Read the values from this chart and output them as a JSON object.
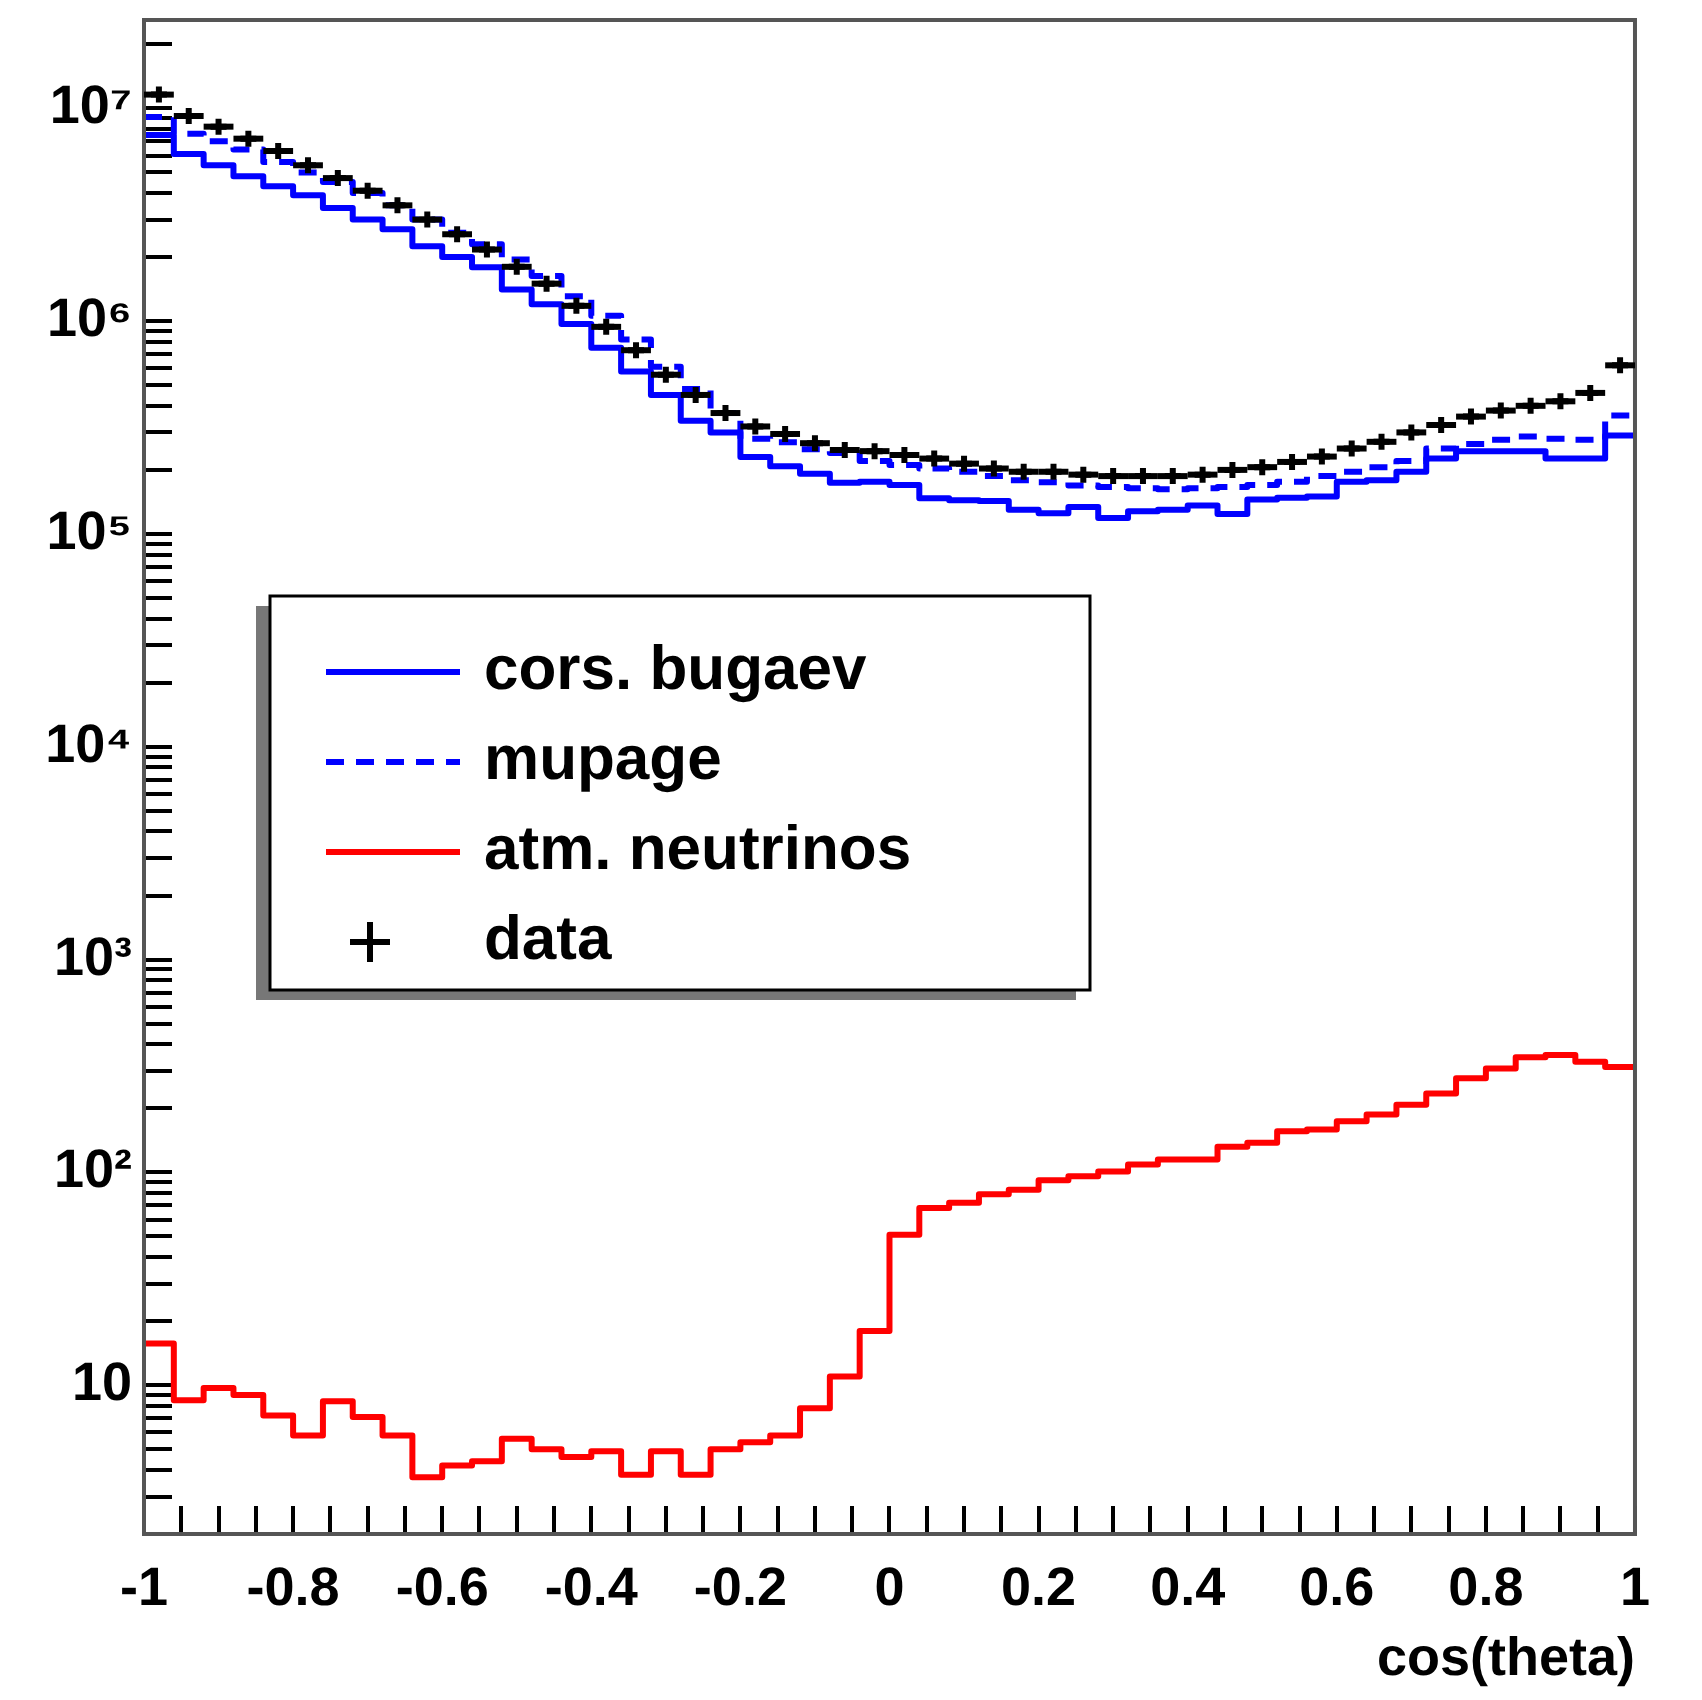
{
  "chart_data": {
    "type": "histogram",
    "xlabel": "cos(theta)",
    "legend": "left",
    "grid": false,
    "log": "y",
    "bins": [
      -1,
      -0.96,
      -0.92,
      -0.88,
      -0.84,
      -0.8,
      -0.76,
      -0.72,
      -0.68,
      -0.64,
      -0.6,
      -0.56,
      -0.52,
      -0.48,
      -0.44,
      -0.4,
      -0.36,
      -0.32,
      -0.28,
      -0.24,
      -0.2,
      -0.16,
      -0.12,
      -0.08,
      -0.04,
      0,
      0.04,
      0.08,
      0.12,
      0.16,
      0.2,
      0.24,
      0.28,
      0.32,
      0.36,
      0.4,
      0.44,
      0.48,
      0.52,
      0.56,
      0.6,
      0.64,
      0.68,
      0.72,
      0.76,
      0.8,
      0.84,
      0.88,
      0.92,
      0.96,
      1
    ],
    "xlim": [
      -1,
      1
    ],
    "xticks": [
      -1,
      {
        "value": -0.95,
        "label": null
      },
      {
        "value": -0.9,
        "label": null
      },
      {
        "value": -0.85,
        "label": null
      },
      -0.8,
      {
        "value": -0.75,
        "label": null
      },
      {
        "value": -0.7,
        "label": null
      },
      {
        "value": -0.65,
        "label": null
      },
      -0.6,
      {
        "value": -0.55,
        "label": null
      },
      {
        "value": -0.5,
        "label": null
      },
      {
        "value": -0.45,
        "label": null
      },
      -0.4,
      {
        "value": -0.35,
        "label": null
      },
      {
        "value": -0.3,
        "label": null
      },
      {
        "value": -0.25,
        "label": null
      },
      -0.2,
      {
        "value": -0.15,
        "label": null
      },
      {
        "value": -0.1,
        "label": null
      },
      {
        "value": -0.05,
        "label": null
      },
      0,
      {
        "value": 0.05,
        "label": null
      },
      {
        "value": 0.1,
        "label": null
      },
      {
        "value": 0.15,
        "label": null
      },
      0.2,
      {
        "value": 0.25,
        "label": null
      },
      {
        "value": 0.3,
        "label": null
      },
      {
        "value": 0.35,
        "label": null
      },
      0.4,
      {
        "value": 0.45,
        "label": null
      },
      {
        "value": 0.5,
        "label": null
      },
      {
        "value": 0.55,
        "label": null
      },
      0.6,
      {
        "value": 0.65,
        "label": null
      },
      {
        "value": 0.7,
        "label": null
      },
      {
        "value": 0.75,
        "label": null
      },
      0.8,
      {
        "value": 0.85,
        "label": null
      },
      {
        "value": 0.9,
        "label": null
      },
      {
        "value": 0.95,
        "label": null
      },
      1
    ],
    "ylim": [
      2,
      26000000
    ],
    "yticks": [
      {
        "value": 2,
        "label": null
      },
      {
        "value": 3,
        "label": null
      },
      {
        "value": 4,
        "label": null
      },
      {
        "value": 5,
        "label": null
      },
      {
        "value": 6,
        "label": null
      },
      {
        "value": 7,
        "label": null
      },
      {
        "value": 8,
        "label": null
      },
      {
        "value": 9,
        "label": null
      },
      10,
      {
        "value": 20,
        "label": null
      },
      {
        "value": 30,
        "label": null
      },
      {
        "value": 40,
        "label": null
      },
      {
        "value": 50,
        "label": null
      },
      {
        "value": 60,
        "label": null
      },
      {
        "value": 70,
        "label": null
      },
      {
        "value": 80,
        "label": null
      },
      {
        "value": 90,
        "label": null
      },
      {
        "value": 100,
        "label": "10²"
      },
      {
        "value": 200,
        "label": null
      },
      {
        "value": 300,
        "label": null
      },
      {
        "value": 400,
        "label": null
      },
      {
        "value": 500,
        "label": null
      },
      {
        "value": 600,
        "label": null
      },
      {
        "value": 700,
        "label": null
      },
      {
        "value": 800,
        "label": null
      },
      {
        "value": 900,
        "label": null
      },
      {
        "value": 1000,
        "label": "10³"
      },
      {
        "value": 2000,
        "label": null
      },
      {
        "value": 3000,
        "label": null
      },
      {
        "value": 4000,
        "label": null
      },
      {
        "value": 5000,
        "label": null
      },
      {
        "value": 6000,
        "label": null
      },
      {
        "value": 7000,
        "label": null
      },
      {
        "value": 8000,
        "label": null
      },
      {
        "value": 9000,
        "label": null
      },
      {
        "value": 10000,
        "label": "10⁴"
      },
      {
        "value": 20000,
        "label": null
      },
      {
        "value": 30000,
        "label": null
      },
      {
        "value": 40000,
        "label": null
      },
      {
        "value": 50000,
        "label": null
      },
      {
        "value": 60000,
        "label": null
      },
      {
        "value": 70000,
        "label": null
      },
      {
        "value": 80000,
        "label": null
      },
      {
        "value": 90000,
        "label": null
      },
      {
        "value": 100000,
        "label": "10⁵"
      },
      {
        "value": 200000,
        "label": null
      },
      {
        "value": 300000,
        "label": null
      },
      {
        "value": 400000,
        "label": null
      },
      {
        "value": 500000,
        "label": null
      },
      {
        "value": 600000,
        "label": null
      },
      {
        "value": 700000,
        "label": null
      },
      {
        "value": 800000,
        "label": null
      },
      {
        "value": 900000,
        "label": null
      },
      {
        "value": 1000000,
        "label": "10⁶"
      },
      {
        "value": 2000000,
        "label": null
      },
      {
        "value": 3000000,
        "label": null
      },
      {
        "value": 4000000,
        "label": null
      },
      {
        "value": 5000000,
        "label": null
      },
      {
        "value": 6000000,
        "label": null
      },
      {
        "value": 7000000,
        "label": null
      },
      {
        "value": 8000000,
        "label": null
      },
      {
        "value": 9000000,
        "label": null
      },
      {
        "value": 10000000,
        "label": "10⁷"
      },
      {
        "value": 20000000,
        "label": null
      }
    ],
    "series": [
      {
        "name": "cors. bugaev",
        "color": "#0000ff",
        "line_style": "solid",
        "values": [
          7500000,
          6100000,
          5400000,
          4800000,
          4300000,
          3900000,
          3400000,
          3000000,
          2700000,
          2250000,
          2000000,
          1790000,
          1410000,
          1200000,
          970000,
          750000,
          580000,
          450000,
          340000,
          300000,
          230000,
          208000,
          192000,
          174000,
          176000,
          170000,
          147000,
          144000,
          143000,
          130000,
          125000,
          134000,
          119000,
          128000,
          130000,
          136000,
          124000,
          145000,
          148000,
          150000,
          176000,
          179000,
          196000,
          226000,
          245000,
          245000,
          245000,
          226000,
          226000,
          290000
        ]
      },
      {
        "name": "mupage",
        "color": "#0000ff",
        "line_style": "dashed",
        "values": [
          9100000,
          7600000,
          7000000,
          6400000,
          5600000,
          5000000,
          4500000,
          4000000,
          3500000,
          3000000,
          2600000,
          2300000,
          1950000,
          1630000,
          1310000,
          1060000,
          820000,
          610000,
          480000,
          370000,
          280000,
          270000,
          250000,
          240000,
          220000,
          211000,
          203000,
          196000,
          187000,
          179000,
          175000,
          169000,
          166000,
          164000,
          162000,
          164000,
          166000,
          170000,
          176000,
          187000,
          196000,
          206000,
          220000,
          252000,
          265000,
          277000,
          287000,
          280000,
          277000,
          360000
        ]
      },
      {
        "name": "atm. neutrinos",
        "color": "#ff0000",
        "line_style": "solid",
        "values": [
          15.7,
          8.5,
          9.7,
          9.0,
          7.2,
          5.8,
          8.4,
          7.1,
          5.8,
          3.7,
          4.2,
          4.4,
          5.6,
          5.0,
          4.6,
          4.9,
          3.8,
          4.9,
          3.8,
          5.0,
          5.4,
          5.8,
          7.8,
          11,
          18,
          51,
          68,
          72,
          79,
          83,
          92,
          96,
          101,
          109,
          115,
          115,
          132,
          138,
          156,
          159,
          174,
          187,
          208,
          235,
          277,
          308,
          348,
          356,
          331,
          313
        ]
      },
      {
        "name": "data",
        "type": "scatter",
        "marker": "cross",
        "color": "#000000",
        "xerrors": [
          0.02,
          0.02,
          0.02,
          0.02,
          0.02,
          0.02,
          0.02,
          0.02,
          0.02,
          0.02,
          0.02,
          0.02,
          0.02,
          0.02,
          0.02,
          0.02,
          0.02,
          0.02,
          0.02,
          0.02,
          0.02,
          0.02,
          0.02,
          0.02,
          0.02,
          0.02,
          0.02,
          0.02,
          0.02,
          0.02,
          0.02,
          0.02,
          0.02,
          0.02,
          0.02,
          0.02,
          0.02,
          0.02,
          0.02,
          0.02,
          0.02,
          0.02,
          0.02,
          0.02,
          0.02,
          0.02,
          0.02,
          0.02,
          0.02,
          0.02
        ],
        "x": [
          -0.98,
          -0.94,
          -0.9,
          -0.86,
          -0.82,
          -0.78,
          -0.74,
          -0.7,
          -0.66,
          -0.62,
          -0.58,
          -0.54,
          -0.5,
          -0.46,
          -0.42,
          -0.38,
          -0.34,
          -0.3,
          -0.26,
          -0.22,
          -0.18,
          -0.14,
          -0.1,
          -0.06,
          -0.02,
          0.02,
          0.06,
          0.1,
          0.14,
          0.18,
          0.22,
          0.26,
          0.3,
          0.34,
          0.38,
          0.42,
          0.46,
          0.5,
          0.54,
          0.58,
          0.62,
          0.66,
          0.7,
          0.74,
          0.78,
          0.82,
          0.86,
          0.9,
          0.94,
          0.98
        ],
        "values": [
          11600000,
          9200000,
          8200000,
          7200000,
          6300000,
          5400000,
          4700000,
          4100000,
          3500000,
          3000000,
          2560000,
          2170000,
          1800000,
          1500000,
          1180000,
          940000,
          730000,
          560000,
          450000,
          370000,
          320000,
          295000,
          267000,
          248000,
          245000,
          235000,
          226000,
          214000,
          203000,
          196000,
          196000,
          190000,
          187000,
          187000,
          187000,
          190000,
          200000,
          206000,
          218000,
          231000,
          252000,
          271000,
          300000,
          325000,
          356000,
          380000,
          400000,
          420000,
          460000,
          620000
        ]
      }
    ]
  }
}
